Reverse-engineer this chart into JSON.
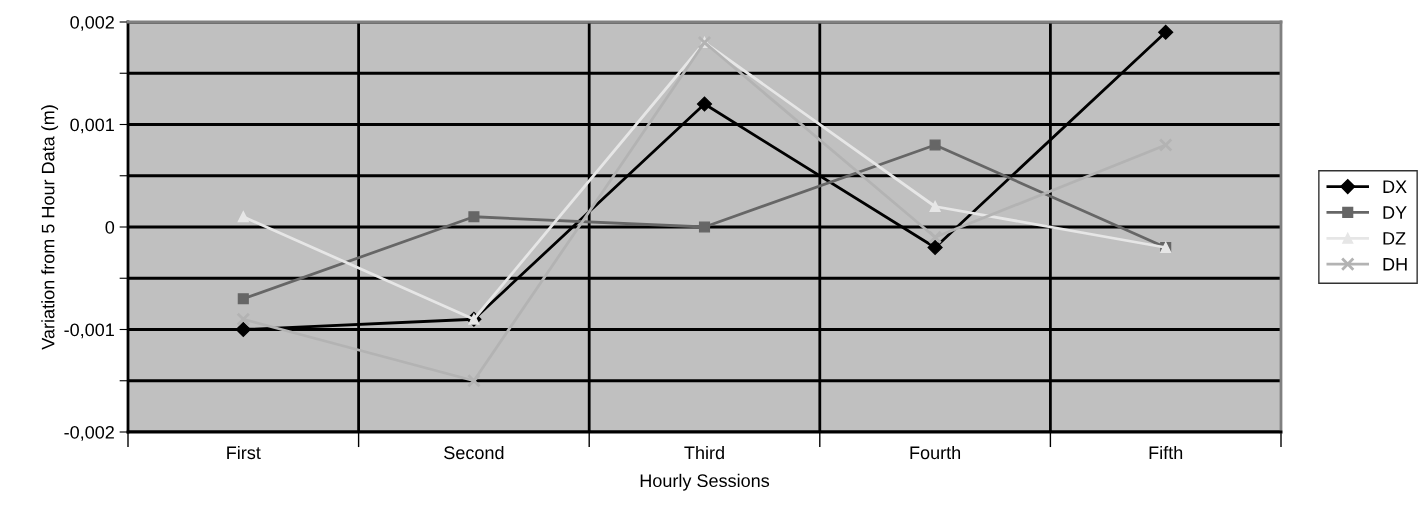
{
  "chart_data": {
    "type": "line",
    "xlabel": "Hourly Sessions",
    "ylabel": "Variation from 5 Hour Data (m)",
    "categories": [
      "First",
      "Second",
      "Third",
      "Fourth",
      "Fifth"
    ],
    "series": [
      {
        "name": "DX",
        "color": "#000000",
        "marker": "diamond",
        "values": [
          -0.001,
          -0.0009,
          0.0012,
          -0.0002,
          0.0019
        ]
      },
      {
        "name": "DY",
        "color": "#666666",
        "marker": "square",
        "values": [
          -0.0007,
          0.0001,
          0.0,
          0.0008,
          -0.0002
        ]
      },
      {
        "name": "DZ",
        "color": "#e6e6e6",
        "marker": "triangle",
        "values": [
          0.0001,
          -0.0009,
          0.0018,
          0.0002,
          -0.0002
        ]
      },
      {
        "name": "DH",
        "color": "#b3b3b3",
        "marker": "cross",
        "values": [
          -0.0009,
          -0.0015,
          0.0018,
          -0.0001,
          0.0008
        ]
      }
    ],
    "ylim": [
      -0.002,
      0.002
    ],
    "yticks": [
      {
        "value": -0.002,
        "label": "-0,002"
      },
      {
        "value": -0.0015,
        "label": null
      },
      {
        "value": -0.001,
        "label": "-0,001"
      },
      {
        "value": -0.0005,
        "label": null
      },
      {
        "value": 0,
        "label": "0"
      },
      {
        "value": 0.0005,
        "label": null
      },
      {
        "value": 0.001,
        "label": "0,001"
      },
      {
        "value": 0.0015,
        "label": null
      },
      {
        "value": 0.002,
        "label": "0,002"
      }
    ],
    "grid": true,
    "legend": "right",
    "line_style": "solid"
  }
}
